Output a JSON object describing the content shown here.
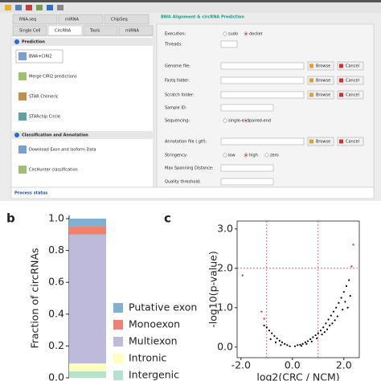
{
  "ui": {
    "tabs_row1": [
      "RNA-seq",
      "miRNA",
      "ChipSeq"
    ],
    "tabs_row2": [
      "Single Cell",
      "CircRNA",
      "Tools",
      "miRNA"
    ],
    "sections": [
      {
        "title": "Prediction",
        "items": [
          "BWA+CIRI2",
          "Merge CIRI2 predictions",
          "STAR Chimeric",
          "STARchip Circle"
        ]
      },
      {
        "title": "Classification and Annotation",
        "items": [
          "Download Exon and Isoform Data",
          "CircHunter classification"
        ]
      }
    ],
    "form": {
      "title": "BWA Alignment & circRNA Prediction",
      "fields": [
        {
          "label": "Execution:",
          "options": [
            "sudo",
            "docker"
          ],
          "selected": 1
        },
        {
          "label": "Threads:"
        },
        {
          "label": "Genome file:",
          "buttons": [
            "Browse",
            "Cancel"
          ]
        },
        {
          "label": "Fastq folder:",
          "buttons": [
            "Browse",
            "Cancel"
          ]
        },
        {
          "label": "Scratch folder:",
          "buttons": [
            "Browse",
            "Cancel"
          ]
        },
        {
          "label": "Sample ID:"
        },
        {
          "label": "Sequencing:",
          "options": [
            "single-end",
            "paired-end"
          ],
          "selected": 1
        },
        {
          "label": "Annotation file (.gtf):",
          "buttons": [
            "Browse",
            "Cancel"
          ]
        },
        {
          "label": "Stringency:",
          "options": [
            "low",
            "high",
            "zero"
          ],
          "selected": 1
        },
        {
          "label": "Max Spanning Distance:"
        },
        {
          "label": "Quality threshold:"
        }
      ]
    },
    "status": "Process status"
  },
  "chart_data": [
    {
      "type": "stacked_bar",
      "panel_label": "b",
      "y_label": "Fraction of circRNAs",
      "categories": [
        null
      ],
      "ylim": [
        0,
        1
      ],
      "yticks": [
        {
          "value": 0,
          "label": "0.0"
        },
        {
          "value": 0.2,
          "label": "0.2"
        },
        {
          "value": 0.4,
          "label": "0.4"
        },
        {
          "value": 0.6,
          "label": "0.6"
        },
        {
          "value": 0.8,
          "label": "0.8"
        },
        {
          "value": 1,
          "label": "1.0"
        }
      ],
      "series": [
        {
          "name": "Intergenic",
          "color": "#b3e2cd",
          "values": [
            0.04
          ]
        },
        {
          "name": "Intronic",
          "color": "#ffffc0",
          "values": [
            0.05
          ]
        },
        {
          "name": "Multiexon",
          "color": "#bdbadc",
          "values": [
            0.81
          ]
        },
        {
          "name": "Monoexon",
          "color": "#f08072",
          "values": [
            0.05
          ]
        },
        {
          "name": "Putative exon",
          "color": "#80b1d3",
          "values": [
            0.05
          ]
        }
      ]
    },
    {
      "type": "scatter",
      "panel_label": "c",
      "x_label": "log2(CRC / NCM)",
      "y_label": "-log10(p-value)",
      "xlim": [
        -2.15,
        2.6
      ],
      "ylim": [
        -0.27,
        3.2
      ],
      "xticks": [
        {
          "value": -2,
          "label": "-2.0"
        },
        {
          "value": 0,
          "label": "0.0"
        },
        {
          "value": 2,
          "label": "2.0"
        }
      ],
      "yticks": [
        {
          "value": 0,
          "label": "0.0"
        },
        {
          "value": 1,
          "label": "1.0"
        },
        {
          "value": 2,
          "label": "2.0"
        },
        {
          "value": 3,
          "label": "3.0"
        }
      ],
      "vlines": [
        -1,
        1
      ],
      "hlines": [
        2
      ],
      "line_color": "#d62728",
      "series": [
        {
          "color": "#000000",
          "x": [
            0.1,
            0.2,
            0.3,
            0.4,
            0.5,
            0.6,
            0.7,
            0.8,
            0.9,
            1.0,
            1.1,
            1.2,
            1.3,
            1.4,
            1.5,
            1.6,
            1.7,
            1.8,
            1.9,
            2.0,
            2.1,
            2.2,
            0.35,
            0.55,
            0.75,
            0.95,
            1.15,
            1.35,
            1.55,
            1.75,
            1.95,
            2.05,
            1.65,
            1.45,
            1.25,
            2.25,
            2.15,
            -0.1,
            -0.2,
            -0.3,
            -0.4,
            -0.5,
            -0.6,
            -0.7,
            -0.8,
            -0.9,
            -1.0,
            -1.1,
            -0.45,
            -0.65,
            -0.85
          ],
          "values": [
            0.02,
            0.05,
            0.06,
            0.08,
            0.12,
            0.15,
            0.2,
            0.25,
            0.3,
            0.35,
            0.42,
            0.5,
            0.6,
            0.7,
            0.8,
            0.9,
            1.0,
            1.12,
            1.25,
            1.4,
            1.55,
            1.7,
            0.03,
            0.08,
            0.14,
            0.22,
            0.32,
            0.45,
            0.6,
            0.78,
            0.95,
            1.15,
            0.68,
            0.55,
            0.38,
            1.3,
            1.0,
            0.02,
            0.05,
            0.08,
            0.12,
            0.16,
            0.22,
            0.28,
            0.35,
            0.42,
            0.5,
            0.55,
            0.05,
            0.12,
            0.2
          ]
        },
        {
          "color": "#d62728",
          "x": [
            -1.94,
            -1.2,
            -1.1,
            2.3,
            2.37
          ],
          "values": [
            1.82,
            0.9,
            0.72,
            2.05,
            2.6
          ]
        }
      ]
    }
  ]
}
